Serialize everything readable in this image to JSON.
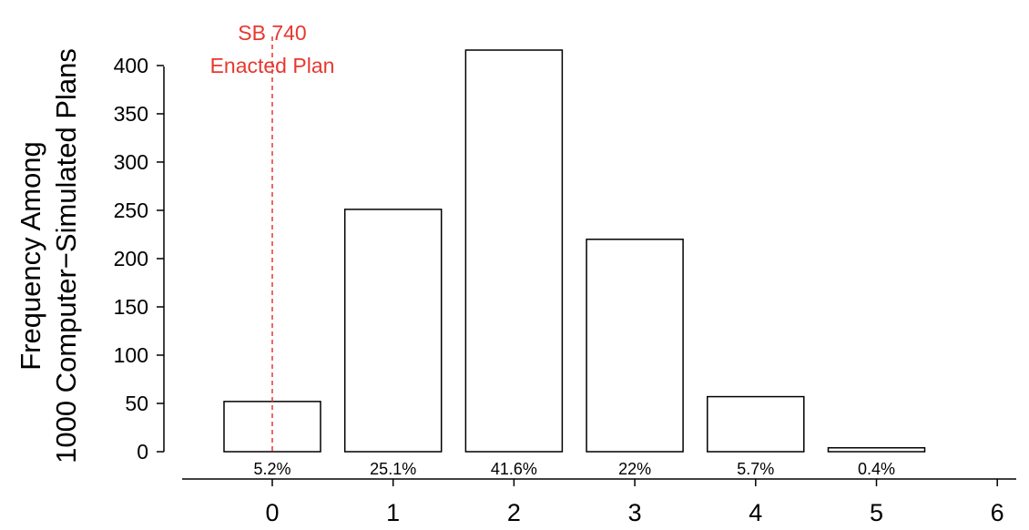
{
  "chart_data": {
    "type": "bar",
    "ylabel_line1": "Frequency Among",
    "ylabel_line2": "1000 Computer−Simulated Plans",
    "xlabel": "",
    "x_ticks": [
      "0",
      "1",
      "2",
      "3",
      "4",
      "5",
      "6"
    ],
    "categories": [
      "0",
      "1",
      "2",
      "3",
      "4",
      "5"
    ],
    "values": [
      52,
      251,
      416,
      220,
      57,
      4
    ],
    "percent_labels": [
      "5.2%",
      "25.1%",
      "41.6%",
      "22%",
      "5.7%",
      "0.4%"
    ],
    "y_ticks": [
      0,
      50,
      100,
      150,
      200,
      250,
      300,
      350,
      400
    ],
    "ylim": [
      0,
      416
    ],
    "xlim": [
      0,
      6
    ],
    "grid": false,
    "reference_line": {
      "x": 0,
      "style": "dashed",
      "color": "#e8372f",
      "label_line1": "SB 740",
      "label_line2": "Enacted Plan"
    },
    "bar_fill": "#ffffff",
    "bar_stroke": "#000000"
  }
}
